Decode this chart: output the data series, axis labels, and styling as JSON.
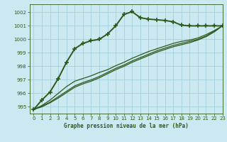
{
  "title": "Graphe pression niveau de la mer (hPa)",
  "bg_color": "#cce8f0",
  "grid_color": "#99ccd9",
  "line_color": "#2d5a1b",
  "xlim": [
    -0.5,
    23
  ],
  "ylim": [
    994.5,
    1002.6
  ],
  "yticks": [
    995,
    996,
    997,
    998,
    999,
    1000,
    1001,
    1002
  ],
  "xticks": [
    0,
    1,
    2,
    3,
    4,
    5,
    6,
    7,
    8,
    9,
    10,
    11,
    12,
    13,
    14,
    15,
    16,
    17,
    18,
    19,
    20,
    21,
    22,
    23
  ],
  "series": [
    {
      "x": [
        0,
        1,
        2,
        3,
        4,
        5,
        6,
        7,
        8,
        9,
        10,
        11,
        12,
        13,
        14,
        15,
        16,
        17,
        18,
        19,
        20,
        21,
        22,
        23
      ],
      "y": [
        994.8,
        995.5,
        996.1,
        997.1,
        998.3,
        999.3,
        999.7,
        999.9,
        1000.0,
        1000.4,
        1001.0,
        1001.85,
        1002.05,
        1001.6,
        1001.5,
        1001.45,
        1001.4,
        1001.3,
        1001.05,
        1001.0,
        1001.0,
        1001.0,
        1001.0,
        1001.0
      ],
      "marker": "+",
      "linewidth": 1.4,
      "markersize": 4.5,
      "markeredgewidth": 1.2
    },
    {
      "x": [
        0,
        1,
        2,
        3,
        4,
        5,
        6,
        7,
        8,
        9,
        10,
        11,
        12,
        13,
        14,
        15,
        16,
        17,
        18,
        19,
        20,
        21,
        22,
        23
      ],
      "y": [
        994.8,
        995.1,
        995.5,
        996.0,
        996.5,
        996.9,
        997.1,
        997.3,
        997.55,
        997.75,
        998.05,
        998.3,
        998.6,
        998.85,
        999.1,
        999.3,
        999.5,
        999.7,
        999.85,
        999.95,
        1000.1,
        1000.35,
        1000.65,
        1001.0
      ],
      "marker": null,
      "linewidth": 0.9,
      "markersize": 0,
      "markeredgewidth": 0
    },
    {
      "x": [
        0,
        1,
        2,
        3,
        4,
        5,
        6,
        7,
        8,
        9,
        10,
        11,
        12,
        13,
        14,
        15,
        16,
        17,
        18,
        19,
        20,
        21,
        22,
        23
      ],
      "y": [
        994.8,
        995.05,
        995.35,
        995.75,
        996.15,
        996.55,
        996.8,
        997.0,
        997.25,
        997.55,
        997.85,
        998.1,
        998.4,
        998.65,
        998.9,
        999.15,
        999.35,
        999.55,
        999.7,
        999.85,
        1000.0,
        1000.25,
        1000.6,
        1001.0
      ],
      "marker": null,
      "linewidth": 0.9,
      "markersize": 0,
      "markeredgewidth": 0
    },
    {
      "x": [
        0,
        1,
        2,
        3,
        4,
        5,
        6,
        7,
        8,
        9,
        10,
        11,
        12,
        13,
        14,
        15,
        16,
        17,
        18,
        19,
        20,
        21,
        22,
        23
      ],
      "y": [
        994.8,
        995.0,
        995.3,
        995.65,
        996.05,
        996.45,
        996.7,
        996.9,
        997.15,
        997.45,
        997.75,
        998.0,
        998.3,
        998.55,
        998.8,
        999.05,
        999.25,
        999.45,
        999.6,
        999.75,
        999.95,
        1000.2,
        1000.55,
        1001.0
      ],
      "marker": null,
      "linewidth": 0.9,
      "markersize": 0,
      "markeredgewidth": 0
    }
  ]
}
